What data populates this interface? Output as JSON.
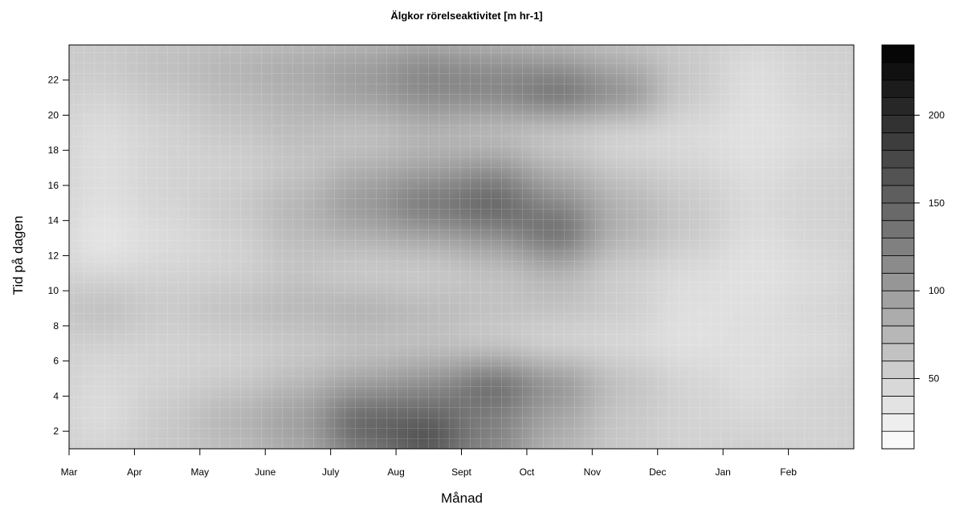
{
  "chart_data": {
    "type": "heatmap",
    "title": "Älgkor rörelseaktivitet [m hr-1]",
    "xlabel": "Månad",
    "ylabel": "Tid på dagen",
    "x_ticks": [
      "Mar",
      "Apr",
      "May",
      "June",
      "July",
      "Aug",
      "Sept",
      "Oct",
      "Nov",
      "Dec",
      "Jan",
      "Feb"
    ],
    "y_ticks": [
      2,
      4,
      6,
      8,
      10,
      12,
      14,
      16,
      18,
      20,
      22
    ],
    "ylim": [
      1,
      24
    ],
    "colorbar": {
      "min": 10,
      "max": 240,
      "step": 10,
      "ticks": [
        50,
        100,
        150,
        200
      ],
      "palette": "white-to-black grayscale"
    },
    "grid": "light gray grid over plot",
    "hours": [
      1,
      3,
      5,
      7,
      9,
      11,
      13,
      15,
      17,
      19,
      21,
      23
    ],
    "values": [
      [
        50,
        60,
        70,
        90,
        140,
        190,
        130,
        80,
        60,
        50,
        55,
        50
      ],
      [
        40,
        60,
        80,
        100,
        160,
        150,
        120,
        90,
        60,
        50,
        45,
        50
      ],
      [
        45,
        50,
        55,
        70,
        90,
        110,
        170,
        120,
        70,
        50,
        40,
        50
      ],
      [
        50,
        50,
        50,
        55,
        60,
        60,
        50,
        40,
        40,
        35,
        40,
        40
      ],
      [
        75,
        60,
        70,
        80,
        90,
        80,
        70,
        70,
        60,
        40,
        40,
        50
      ],
      [
        45,
        50,
        50,
        60,
        50,
        50,
        60,
        70,
        50,
        40,
        35,
        40
      ],
      [
        30,
        40,
        50,
        70,
        80,
        90,
        110,
        160,
        80,
        60,
        40,
        50
      ],
      [
        40,
        50,
        60,
        80,
        110,
        150,
        170,
        120,
        80,
        60,
        45,
        50
      ],
      [
        40,
        50,
        50,
        60,
        80,
        90,
        110,
        80,
        60,
        50,
        40,
        50
      ],
      [
        40,
        50,
        60,
        70,
        60,
        70,
        60,
        50,
        40,
        40,
        35,
        40
      ],
      [
        50,
        60,
        70,
        80,
        100,
        120,
        130,
        170,
        130,
        60,
        40,
        50
      ],
      [
        60,
        70,
        80,
        90,
        100,
        120,
        110,
        100,
        80,
        60,
        40,
        50
      ]
    ]
  }
}
